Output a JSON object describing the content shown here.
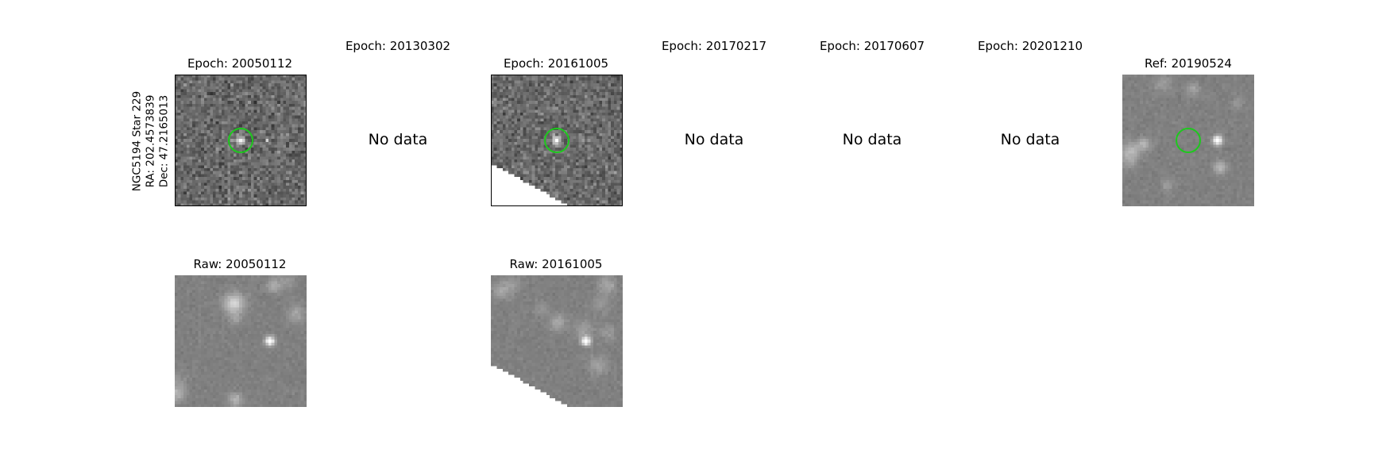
{
  "star_info": {
    "name": "NGC5194 Star 229",
    "ra": "RA: 202.4573839",
    "dec": "Dec: 47.2165013"
  },
  "epochs": [
    {
      "title": "Epoch: 20050112",
      "status": "data"
    },
    {
      "title": "Epoch: 20130302",
      "status": "No data"
    },
    {
      "title": "Epoch: 20161005",
      "status": "data"
    },
    {
      "title": "Epoch: 20170217",
      "status": "No data"
    },
    {
      "title": "Epoch: 20170607",
      "status": "No data"
    },
    {
      "title": "Epoch: 20201210",
      "status": "No data"
    }
  ],
  "reference": {
    "title": "Ref: 20190524"
  },
  "raw": [
    {
      "title": "Raw: 20050112"
    },
    {
      "title": "Raw: 20161005"
    }
  ],
  "colors": {
    "marker": "#1ec81e"
  }
}
